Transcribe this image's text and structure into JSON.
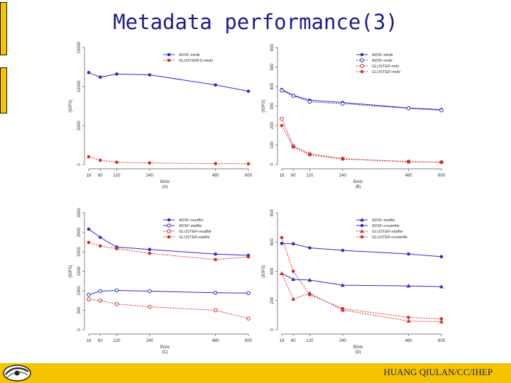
{
  "slide": {
    "title": "Metadata performance(3)",
    "footer": "HUANG QIULAN/CC/IHEP"
  },
  "chart_data": [
    {
      "type": "line",
      "panel_label": "(A)",
      "xlabel": "Brick",
      "ylabel": "(IOPS)",
      "x": [
        18,
        60,
        120,
        240,
        480,
        600
      ],
      "ylim": [
        0,
        15000
      ],
      "yticks": [
        0,
        5000,
        10000,
        15000
      ],
      "legend_position": "top-right",
      "series": [
        {
          "name": "ADSF-mkdir",
          "values": [
            11800,
            11200,
            11600,
            11500,
            10200,
            9400
          ],
          "color": "#2b2bcc",
          "dash": false,
          "marker": "circle-filled"
        },
        {
          "name": "GLUSTERFS-mkdir",
          "values": [
            1000,
            550,
            300,
            200,
            120,
            100
          ],
          "color": "#d42a2a",
          "dash": true,
          "marker": "circle-filled"
        }
      ]
    },
    {
      "type": "line",
      "panel_label": "(B)",
      "xlabel": "Brick",
      "ylabel": "(IOPS)",
      "x": [
        18,
        60,
        120,
        240,
        480,
        600
      ],
      "ylim": [
        0,
        600
      ],
      "yticks": [
        0,
        100,
        200,
        300,
        400,
        500,
        600
      ],
      "legend_position": "top-right",
      "series": [
        {
          "name": "ADSF-mkdir",
          "values": [
            385,
            355,
            330,
            318,
            290,
            282
          ],
          "color": "#2b2bcc",
          "dash": false,
          "marker": "circle-filled"
        },
        {
          "name": "ADSF-rmdir",
          "values": [
            380,
            352,
            322,
            312,
            288,
            278
          ],
          "color": "#2b2bcc",
          "dash": true,
          "marker": "circle-open"
        },
        {
          "name": "GLUSTER-mdir",
          "values": [
            235,
            95,
            55,
            30,
            15,
            12
          ],
          "color": "#d42a2a",
          "dash": true,
          "marker": "circle-open"
        },
        {
          "name": "GLUSTER-rmdir",
          "values": [
            200,
            90,
            50,
            28,
            14,
            12
          ],
          "color": "#d42a2a",
          "dash": true,
          "marker": "circle-filled"
        }
      ]
    },
    {
      "type": "line",
      "panel_label": "(C)",
      "xlabel": "Brick",
      "ylabel": "(IOPS)",
      "x": [
        18,
        60,
        120,
        240,
        480,
        600
      ],
      "ylim": [
        0,
        3000
      ],
      "yticks": [
        0,
        500,
        1000,
        1500,
        2000,
        2500,
        3000
      ],
      "legend_position": "top-right",
      "series": [
        {
          "name": "ADSF-readfile",
          "values": [
            2580,
            2370,
            2120,
            2060,
            1940,
            1910
          ],
          "color": "#2b2bcc",
          "dash": false,
          "marker": "circle-filled"
        },
        {
          "name": "ADSF-statfile",
          "values": [
            900,
            990,
            1010,
            990,
            950,
            940
          ],
          "color": "#2b2bcc",
          "dash": false,
          "marker": "circle-open"
        },
        {
          "name": "GLUSTER-readfile",
          "values": [
            780,
            750,
            660,
            590,
            500,
            290
          ],
          "color": "#d42a2a",
          "dash": true,
          "marker": "circle-open"
        },
        {
          "name": "GLUSTER-statfile",
          "values": [
            2240,
            2150,
            2080,
            1960,
            1800,
            1870
          ],
          "color": "#d42a2a",
          "dash": true,
          "marker": "circle-filled"
        }
      ]
    },
    {
      "type": "line",
      "panel_label": "(D)",
      "xlabel": "Brick",
      "ylabel": "(IOPS)",
      "x": [
        18,
        60,
        120,
        240,
        480,
        600
      ],
      "ylim": [
        0,
        800
      ],
      "yticks": [
        0,
        200,
        400,
        600,
        800
      ],
      "legend_position": "top-right",
      "series": [
        {
          "name": "ADSF-statfile",
          "values": [
            385,
            345,
            340,
            305,
            300,
            295
          ],
          "color": "#2b2bcc",
          "dash": false,
          "marker": "triangle"
        },
        {
          "name": "ADSF-createfile",
          "values": [
            590,
            588,
            560,
            543,
            518,
            500
          ],
          "color": "#2b2bcc",
          "dash": false,
          "marker": "circle-filled"
        },
        {
          "name": "GLUSTER-statfile",
          "values": [
            385,
            210,
            250,
            135,
            60,
            55
          ],
          "color": "#d42a2a",
          "dash": true,
          "marker": "triangle"
        },
        {
          "name": "GLUSTER-createfile",
          "values": [
            630,
            400,
            240,
            145,
            85,
            75
          ],
          "color": "#d42a2a",
          "dash": true,
          "marker": "circle-filled"
        }
      ]
    }
  ]
}
